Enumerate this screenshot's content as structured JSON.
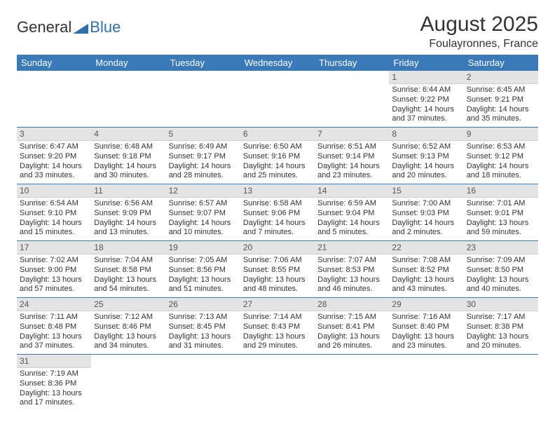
{
  "logo": {
    "word1": "General",
    "word2": "Blue",
    "word1_color": "#333333",
    "word2_color": "#2f6fab",
    "sail_color": "#2f6fab"
  },
  "header": {
    "title": "August 2025",
    "location": "Foulayronnes, France"
  },
  "calendar": {
    "type": "table",
    "header_bg": "#3a7ab8",
    "header_fg": "#ffffff",
    "row_divider_color": "#3a7ab8",
    "daynum_bg": "#e4e4e4",
    "body_fontsize": 11,
    "columns": [
      "Sunday",
      "Monday",
      "Tuesday",
      "Wednesday",
      "Thursday",
      "Friday",
      "Saturday"
    ],
    "weeks": [
      [
        null,
        null,
        null,
        null,
        null,
        {
          "n": "1",
          "sr": "6:44 AM",
          "ss": "9:22 PM",
          "dl": "14 hours and 37 minutes."
        },
        {
          "n": "2",
          "sr": "6:45 AM",
          "ss": "9:21 PM",
          "dl": "14 hours and 35 minutes."
        }
      ],
      [
        {
          "n": "3",
          "sr": "6:47 AM",
          "ss": "9:20 PM",
          "dl": "14 hours and 33 minutes."
        },
        {
          "n": "4",
          "sr": "6:48 AM",
          "ss": "9:18 PM",
          "dl": "14 hours and 30 minutes."
        },
        {
          "n": "5",
          "sr": "6:49 AM",
          "ss": "9:17 PM",
          "dl": "14 hours and 28 minutes."
        },
        {
          "n": "6",
          "sr": "6:50 AM",
          "ss": "9:16 PM",
          "dl": "14 hours and 25 minutes."
        },
        {
          "n": "7",
          "sr": "6:51 AM",
          "ss": "9:14 PM",
          "dl": "14 hours and 23 minutes."
        },
        {
          "n": "8",
          "sr": "6:52 AM",
          "ss": "9:13 PM",
          "dl": "14 hours and 20 minutes."
        },
        {
          "n": "9",
          "sr": "6:53 AM",
          "ss": "9:12 PM",
          "dl": "14 hours and 18 minutes."
        }
      ],
      [
        {
          "n": "10",
          "sr": "6:54 AM",
          "ss": "9:10 PM",
          "dl": "14 hours and 15 minutes."
        },
        {
          "n": "11",
          "sr": "6:56 AM",
          "ss": "9:09 PM",
          "dl": "14 hours and 13 minutes."
        },
        {
          "n": "12",
          "sr": "6:57 AM",
          "ss": "9:07 PM",
          "dl": "14 hours and 10 minutes."
        },
        {
          "n": "13",
          "sr": "6:58 AM",
          "ss": "9:06 PM",
          "dl": "14 hours and 7 minutes."
        },
        {
          "n": "14",
          "sr": "6:59 AM",
          "ss": "9:04 PM",
          "dl": "14 hours and 5 minutes."
        },
        {
          "n": "15",
          "sr": "7:00 AM",
          "ss": "9:03 PM",
          "dl": "14 hours and 2 minutes."
        },
        {
          "n": "16",
          "sr": "7:01 AM",
          "ss": "9:01 PM",
          "dl": "13 hours and 59 minutes."
        }
      ],
      [
        {
          "n": "17",
          "sr": "7:02 AM",
          "ss": "9:00 PM",
          "dl": "13 hours and 57 minutes."
        },
        {
          "n": "18",
          "sr": "7:04 AM",
          "ss": "8:58 PM",
          "dl": "13 hours and 54 minutes."
        },
        {
          "n": "19",
          "sr": "7:05 AM",
          "ss": "8:56 PM",
          "dl": "13 hours and 51 minutes."
        },
        {
          "n": "20",
          "sr": "7:06 AM",
          "ss": "8:55 PM",
          "dl": "13 hours and 48 minutes."
        },
        {
          "n": "21",
          "sr": "7:07 AM",
          "ss": "8:53 PM",
          "dl": "13 hours and 46 minutes."
        },
        {
          "n": "22",
          "sr": "7:08 AM",
          "ss": "8:52 PM",
          "dl": "13 hours and 43 minutes."
        },
        {
          "n": "23",
          "sr": "7:09 AM",
          "ss": "8:50 PM",
          "dl": "13 hours and 40 minutes."
        }
      ],
      [
        {
          "n": "24",
          "sr": "7:11 AM",
          "ss": "8:48 PM",
          "dl": "13 hours and 37 minutes."
        },
        {
          "n": "25",
          "sr": "7:12 AM",
          "ss": "8:46 PM",
          "dl": "13 hours and 34 minutes."
        },
        {
          "n": "26",
          "sr": "7:13 AM",
          "ss": "8:45 PM",
          "dl": "13 hours and 31 minutes."
        },
        {
          "n": "27",
          "sr": "7:14 AM",
          "ss": "8:43 PM",
          "dl": "13 hours and 29 minutes."
        },
        {
          "n": "28",
          "sr": "7:15 AM",
          "ss": "8:41 PM",
          "dl": "13 hours and 26 minutes."
        },
        {
          "n": "29",
          "sr": "7:16 AM",
          "ss": "8:40 PM",
          "dl": "13 hours and 23 minutes."
        },
        {
          "n": "30",
          "sr": "7:17 AM",
          "ss": "8:38 PM",
          "dl": "13 hours and 20 minutes."
        }
      ],
      [
        {
          "n": "31",
          "sr": "7:19 AM",
          "ss": "8:36 PM",
          "dl": "13 hours and 17 minutes."
        },
        null,
        null,
        null,
        null,
        null,
        null
      ]
    ],
    "labels": {
      "sunrise": "Sunrise:",
      "sunset": "Sunset:",
      "daylight": "Daylight:"
    }
  }
}
